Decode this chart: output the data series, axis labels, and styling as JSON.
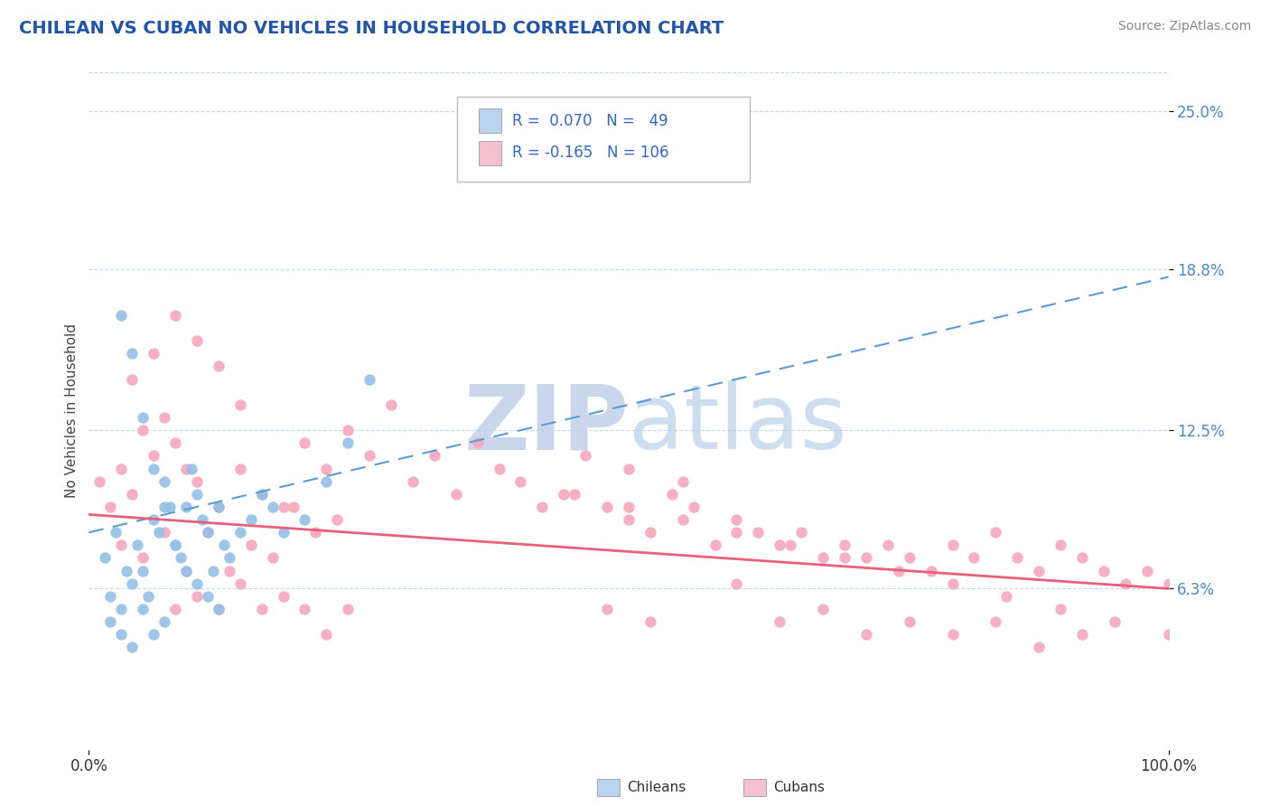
{
  "title": "CHILEAN VS CUBAN NO VEHICLES IN HOUSEHOLD CORRELATION CHART",
  "source": "Source: ZipAtlas.com",
  "ylabel": "No Vehicles in Household",
  "r_chilean": 0.07,
  "n_chilean": 49,
  "r_cuban": -0.165,
  "n_cuban": 106,
  "xmin": 0.0,
  "xmax": 100.0,
  "ymin": 0.0,
  "ymax": 26.5,
  "yticks": [
    6.3,
    12.5,
    18.8,
    25.0
  ],
  "ytick_labels": [
    "6.3%",
    "12.5%",
    "18.8%",
    "25.0%"
  ],
  "chilean_color": "#92c0e8",
  "cuban_color": "#f5a8bc",
  "trend_chilean_color": "#5b9bd5",
  "trend_cuban_color": "#e8607a",
  "background_color": "#ffffff",
  "watermark_color": "#d0dff0",
  "legend_box_chilean": "#b8d4f0",
  "legend_box_cuban": "#f5c0d0",
  "chilean_x": [
    1.5,
    2.0,
    2.5,
    3.0,
    3.5,
    4.0,
    4.5,
    5.0,
    5.5,
    6.0,
    6.5,
    7.0,
    7.5,
    8.0,
    8.5,
    9.0,
    9.5,
    10.0,
    10.5,
    11.0,
    11.5,
    12.0,
    12.5,
    13.0,
    14.0,
    15.0,
    16.0,
    17.0,
    18.0,
    20.0,
    22.0,
    24.0,
    26.0,
    3.0,
    4.0,
    5.0,
    6.0,
    7.0,
    8.0,
    9.0,
    10.0,
    11.0,
    12.0,
    2.0,
    3.0,
    4.0,
    5.0,
    6.0,
    7.0
  ],
  "chilean_y": [
    7.5,
    6.0,
    8.5,
    5.5,
    7.0,
    6.5,
    8.0,
    7.0,
    6.0,
    9.0,
    8.5,
    10.5,
    9.5,
    8.0,
    7.5,
    9.5,
    11.0,
    10.0,
    9.0,
    8.5,
    7.0,
    9.5,
    8.0,
    7.5,
    8.5,
    9.0,
    10.0,
    9.5,
    8.5,
    9.0,
    10.5,
    12.0,
    14.5,
    17.0,
    15.5,
    13.0,
    11.0,
    9.5,
    8.0,
    7.0,
    6.5,
    6.0,
    5.5,
    5.0,
    4.5,
    4.0,
    5.5,
    4.5,
    5.0
  ],
  "cuban_x": [
    1.0,
    2.0,
    3.0,
    4.0,
    5.0,
    6.0,
    7.0,
    8.0,
    9.0,
    10.0,
    12.0,
    14.0,
    16.0,
    18.0,
    20.0,
    22.0,
    24.0,
    26.0,
    28.0,
    30.0,
    32.0,
    34.0,
    36.0,
    38.0,
    40.0,
    42.0,
    44.0,
    46.0,
    48.0,
    50.0,
    52.0,
    54.0,
    56.0,
    58.0,
    60.0,
    62.0,
    64.0,
    66.0,
    68.0,
    70.0,
    72.0,
    74.0,
    76.0,
    78.0,
    80.0,
    82.0,
    84.0,
    86.0,
    88.0,
    90.0,
    92.0,
    94.0,
    96.0,
    98.0,
    100.0,
    3.0,
    5.0,
    7.0,
    9.0,
    11.0,
    13.0,
    15.0,
    17.0,
    19.0,
    21.0,
    23.0,
    8.0,
    10.0,
    12.0,
    14.0,
    16.0,
    18.0,
    20.0,
    22.0,
    24.0,
    48.0,
    52.0,
    60.0,
    64.0,
    68.0,
    72.0,
    76.0,
    80.0,
    84.0,
    88.0,
    92.0,
    4.0,
    6.0,
    8.0,
    10.0,
    12.0,
    14.0,
    50.0,
    55.0,
    60.0,
    65.0,
    70.0,
    75.0,
    80.0,
    85.0,
    90.0,
    95.0,
    100.0,
    45.0,
    50.0,
    55.0
  ],
  "cuban_y": [
    10.5,
    9.5,
    11.0,
    10.0,
    12.5,
    11.5,
    13.0,
    12.0,
    11.0,
    10.5,
    9.5,
    11.0,
    10.0,
    9.5,
    12.0,
    11.0,
    12.5,
    11.5,
    13.5,
    10.5,
    11.5,
    10.0,
    12.0,
    11.0,
    10.5,
    9.5,
    10.0,
    11.5,
    9.5,
    9.0,
    8.5,
    10.0,
    9.5,
    8.0,
    9.0,
    8.5,
    8.0,
    8.5,
    7.5,
    8.0,
    7.5,
    8.0,
    7.5,
    7.0,
    8.0,
    7.5,
    8.5,
    7.5,
    7.0,
    8.0,
    7.5,
    7.0,
    6.5,
    7.0,
    6.5,
    8.0,
    7.5,
    8.5,
    7.0,
    8.5,
    7.0,
    8.0,
    7.5,
    9.5,
    8.5,
    9.0,
    5.5,
    6.0,
    5.5,
    6.5,
    5.5,
    6.0,
    5.5,
    4.5,
    5.5,
    5.5,
    5.0,
    6.5,
    5.0,
    5.5,
    4.5,
    5.0,
    4.5,
    5.0,
    4.0,
    4.5,
    14.5,
    15.5,
    17.0,
    16.0,
    15.0,
    13.5,
    9.5,
    9.0,
    8.5,
    8.0,
    7.5,
    7.0,
    6.5,
    6.0,
    5.5,
    5.0,
    4.5,
    10.0,
    11.0,
    10.5
  ],
  "chi_trend_x0": 0.0,
  "chi_trend_x1": 100.0,
  "chi_trend_y0": 8.5,
  "chi_trend_y1": 18.5,
  "cub_trend_x0": 0.0,
  "cub_trend_x1": 100.0,
  "cub_trend_y0": 9.2,
  "cub_trend_y1": 6.3
}
